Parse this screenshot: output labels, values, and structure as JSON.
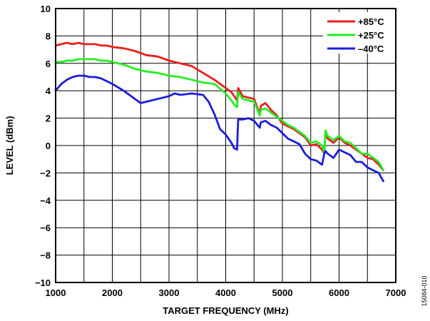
{
  "figure_id": "15084-010",
  "chart_data": {
    "type": "line",
    "title": "",
    "xlabel": "TARGET FREQUENCY (MHz)",
    "ylabel": "LEVEL (dBm)",
    "xlim": [
      1000,
      7000
    ],
    "ylim": [
      -10,
      10
    ],
    "xticks": [
      1000,
      2000,
      3000,
      4000,
      5000,
      6000,
      7000
    ],
    "xtick_labels": [
      "1000",
      "2000",
      "3000",
      "4000",
      "5000",
      "6000",
      "7000"
    ],
    "yticks": [
      -10,
      -8,
      -6,
      -4,
      -2,
      0,
      2,
      4,
      6,
      8,
      10
    ],
    "ytick_labels": [
      "−10",
      "−8",
      "−6",
      "−4",
      "−2",
      "0",
      "2",
      "4",
      "6",
      "8",
      "10"
    ],
    "x_minor_step": 500,
    "grid": true,
    "legend": {
      "placement": "top-right"
    },
    "series": [
      {
        "name": "+85°C",
        "color": "#ee1c1c",
        "x": [
          1000,
          1100,
          1200,
          1300,
          1400,
          1500,
          1600,
          1700,
          1800,
          1900,
          2000,
          2200,
          2400,
          2600,
          2800,
          3000,
          3200,
          3400,
          3600,
          3800,
          4000,
          4100,
          4150,
          4200,
          4220,
          4300,
          4400,
          4500,
          4600,
          4620,
          4700,
          4800,
          4900,
          5000,
          5100,
          5200,
          5300,
          5400,
          5500,
          5600,
          5700,
          5740,
          5760,
          5800,
          5900,
          6000,
          6100,
          6200,
          6300,
          6400,
          6500,
          6600,
          6700,
          6780
        ],
        "y": [
          7.3,
          7.4,
          7.5,
          7.4,
          7.5,
          7.4,
          7.4,
          7.4,
          7.3,
          7.3,
          7.2,
          7.1,
          6.9,
          6.6,
          6.5,
          6.2,
          6.0,
          5.8,
          5.3,
          4.8,
          4.2,
          3.9,
          3.6,
          3.3,
          4.2,
          3.6,
          3.5,
          3.4,
          2.3,
          2.9,
          3.1,
          2.6,
          2.2,
          1.6,
          1.4,
          1.2,
          0.9,
          0.6,
          0.0,
          0.1,
          -0.3,
          -0.6,
          0.9,
          0.5,
          0.2,
          0.6,
          0.2,
          0.0,
          -0.3,
          -0.6,
          -0.9,
          -1.0,
          -1.4,
          -1.8
        ]
      },
      {
        "name": "+25°C",
        "color": "#22ee22",
        "x": [
          1000,
          1100,
          1200,
          1300,
          1400,
          1500,
          1600,
          1700,
          1800,
          1900,
          2000,
          2200,
          2400,
          2600,
          2800,
          3000,
          3200,
          3400,
          3600,
          3800,
          4000,
          4100,
          4150,
          4200,
          4220,
          4300,
          4400,
          4500,
          4600,
          4620,
          4700,
          4800,
          4900,
          5000,
          5100,
          5200,
          5300,
          5400,
          5500,
          5600,
          5700,
          5740,
          5760,
          5800,
          5900,
          6000,
          6100,
          6200,
          6300,
          6400,
          6500,
          6600,
          6700,
          6780
        ],
        "y": [
          6.1,
          6.1,
          6.2,
          6.2,
          6.3,
          6.3,
          6.3,
          6.3,
          6.2,
          6.2,
          6.1,
          5.9,
          5.6,
          5.4,
          5.3,
          5.1,
          5.0,
          4.8,
          4.6,
          4.5,
          3.8,
          3.3,
          3.0,
          2.8,
          3.9,
          3.4,
          3.3,
          3.2,
          2.2,
          2.6,
          2.7,
          2.4,
          2.1,
          1.8,
          1.5,
          1.3,
          1.0,
          0.7,
          0.2,
          0.3,
          0.0,
          -0.5,
          1.1,
          0.7,
          0.4,
          0.7,
          0.3,
          0.2,
          -0.2,
          -0.6,
          -0.6,
          -0.9,
          -1.2,
          -1.8
        ]
      },
      {
        "name": "–40°C",
        "color": "#1c1cdd",
        "x": [
          1000,
          1100,
          1200,
          1300,
          1400,
          1500,
          1600,
          1700,
          1800,
          1900,
          2000,
          2200,
          2400,
          2500,
          2600,
          2800,
          3000,
          3100,
          3200,
          3400,
          3600,
          3700,
          3800,
          3900,
          4000,
          4100,
          4150,
          4200,
          4220,
          4300,
          4400,
          4500,
          4600,
          4620,
          4700,
          4800,
          4900,
          5000,
          5100,
          5200,
          5300,
          5400,
          5500,
          5600,
          5700,
          5740,
          5760,
          5800,
          5900,
          6000,
          6100,
          6200,
          6300,
          6400,
          6500,
          6600,
          6700,
          6780
        ],
        "y": [
          4.0,
          4.5,
          4.8,
          5.0,
          5.1,
          5.1,
          5.0,
          5.0,
          4.9,
          4.7,
          4.5,
          4.0,
          3.4,
          3.1,
          3.2,
          3.4,
          3.6,
          3.8,
          3.7,
          3.8,
          3.7,
          3.2,
          2.3,
          1.2,
          0.8,
          0.2,
          -0.2,
          -0.3,
          1.9,
          1.9,
          2.0,
          1.8,
          1.3,
          1.7,
          1.8,
          1.5,
          1.3,
          0.9,
          0.5,
          0.3,
          0.1,
          -0.6,
          -1.0,
          -1.1,
          -1.4,
          -0.6,
          -0.4,
          -0.6,
          -0.9,
          -0.3,
          -0.5,
          -0.7,
          -1.2,
          -1.2,
          -1.6,
          -1.8,
          -2.0,
          -2.6
        ]
      }
    ]
  }
}
